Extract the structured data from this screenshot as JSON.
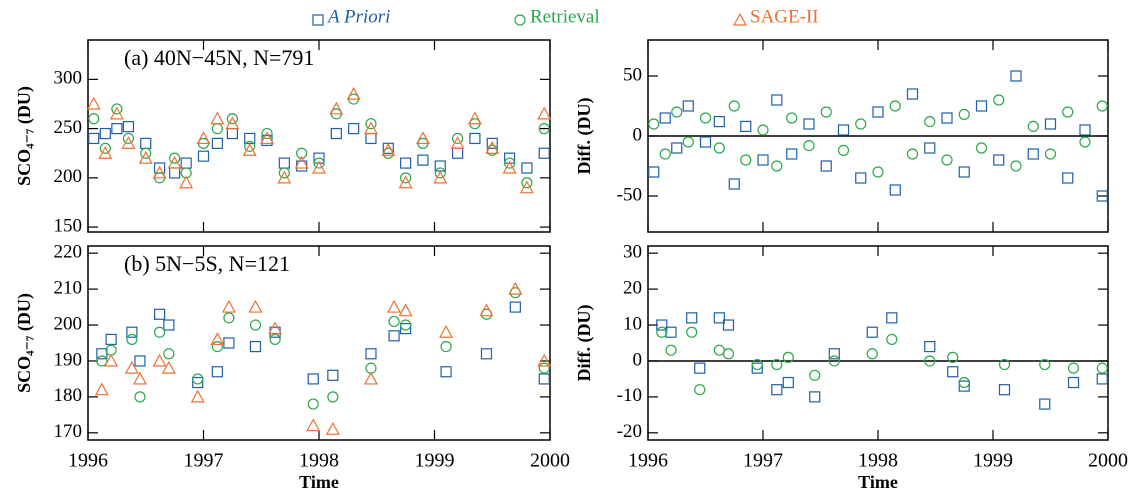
{
  "chart_data": [
    {
      "type": "scatter",
      "annotation": "(a) 40N−45N, N=791",
      "ylabel": "SCO₄₋₇ (DU)",
      "x": [
        1996.05,
        1996.15,
        1996.25,
        1996.35,
        1996.5,
        1996.62,
        1996.75,
        1996.85,
        1997.0,
        1997.12,
        1997.25,
        1997.4,
        1997.55,
        1997.7,
        1997.85,
        1998.0,
        1998.15,
        1998.3,
        1998.45,
        1998.6,
        1998.75,
        1998.9,
        1999.05,
        1999.2,
        1999.35,
        1999.5,
        1999.65,
        1999.8,
        1999.95
      ],
      "series": [
        {
          "name": "A Priori",
          "color": "#1f5fa8",
          "marker": "square",
          "values": [
            240,
            245,
            250,
            252,
            235,
            210,
            205,
            215,
            222,
            235,
            245,
            240,
            238,
            215,
            212,
            220,
            245,
            250,
            240,
            230,
            215,
            218,
            212,
            225,
            240,
            235,
            220,
            210,
            225
          ]
        },
        {
          "name": "Retrieval",
          "color": "#2aa84a",
          "marker": "circle",
          "values": [
            260,
            230,
            270,
            240,
            225,
            200,
            220,
            205,
            235,
            250,
            260,
            232,
            245,
            205,
            225,
            215,
            265,
            280,
            255,
            225,
            200,
            235,
            205,
            240,
            255,
            228,
            215,
            195,
            250
          ]
        },
        {
          "name": "SAGE-II",
          "color": "#f07030",
          "marker": "triangle",
          "values": [
            275,
            225,
            265,
            235,
            220,
            205,
            215,
            195,
            240,
            260,
            255,
            228,
            240,
            200,
            215,
            210,
            270,
            285,
            250,
            228,
            195,
            240,
            200,
            235,
            260,
            230,
            210,
            190,
            265
          ]
        }
      ],
      "xlim": [
        1996,
        2000
      ],
      "xticks": [
        1996,
        1997,
        1998,
        1999,
        2000
      ],
      "ylim": [
        145,
        340
      ],
      "yticks": [
        150,
        200,
        250,
        300
      ]
    },
    {
      "type": "scatter",
      "ylabel": "Diff. (DU)",
      "x": [
        1996.05,
        1996.15,
        1996.25,
        1996.35,
        1996.5,
        1996.62,
        1996.75,
        1996.85,
        1997.0,
        1997.12,
        1997.25,
        1997.4,
        1997.55,
        1997.7,
        1997.85,
        1998.0,
        1998.15,
        1998.3,
        1998.45,
        1998.6,
        1998.75,
        1998.9,
        1999.05,
        1999.2,
        1999.35,
        1999.5,
        1999.65,
        1999.8,
        1999.95
      ],
      "series": [
        {
          "color": "#1f5fa8",
          "marker": "square",
          "values": [
            -30,
            15,
            -10,
            25,
            -5,
            12,
            -40,
            8,
            -20,
            30,
            -15,
            10,
            -25,
            5,
            -35,
            20,
            -45,
            35,
            -10,
            15,
            -30,
            25,
            -20,
            50,
            -15,
            10,
            -35,
            5,
            -50
          ]
        },
        {
          "color": "#2aa84a",
          "marker": "circle",
          "values": [
            10,
            -15,
            20,
            -5,
            15,
            -10,
            25,
            -20,
            5,
            -25,
            15,
            -8,
            20,
            -12,
            10,
            -30,
            25,
            -15,
            12,
            -20,
            18,
            -10,
            30,
            -25,
            8,
            -15,
            20,
            -5,
            25
          ]
        }
      ],
      "hline": 0,
      "xlim": [
        1996,
        2000
      ],
      "xticks": [
        1996,
        1997,
        1998,
        1999,
        2000
      ],
      "ylim": [
        -80,
        80
      ],
      "yticks": [
        -50,
        0,
        50
      ]
    },
    {
      "type": "scatter",
      "annotation": "(b) 5N−5S, N=121",
      "ylabel": "SCO₄₋₇ (DU)",
      "xlabel": "Time",
      "x": [
        1996.12,
        1996.2,
        1996.38,
        1996.45,
        1996.62,
        1996.7,
        1996.95,
        1997.12,
        1997.22,
        1997.45,
        1997.62,
        1997.95,
        1998.12,
        1998.45,
        1998.65,
        1998.75,
        1999.1,
        1999.45,
        1999.7,
        1999.95
      ],
      "series": [
        {
          "color": "#1f5fa8",
          "marker": "square",
          "values": [
            192,
            196,
            198,
            190,
            203,
            200,
            184,
            187,
            195,
            194,
            198,
            185,
            186,
            192,
            197,
            199,
            187,
            192,
            205,
            185
          ]
        },
        {
          "color": "#2aa84a",
          "marker": "circle",
          "values": [
            190,
            193,
            196,
            180,
            198,
            192,
            185,
            194,
            202,
            200,
            196,
            178,
            180,
            188,
            201,
            200,
            194,
            203,
            209,
            188
          ]
        },
        {
          "color": "#f07030",
          "marker": "triangle",
          "values": [
            182,
            190,
            188,
            185,
            190,
            188,
            180,
            196,
            205,
            205,
            199,
            172,
            171,
            185,
            205,
            204,
            198,
            204,
            210,
            190
          ]
        }
      ],
      "xlim": [
        1996,
        2000
      ],
      "xticks": [
        1996,
        1997,
        1998,
        1999,
        2000
      ],
      "ylim": [
        168,
        222
      ],
      "yticks": [
        170,
        180,
        190,
        200,
        210,
        220
      ]
    },
    {
      "type": "scatter",
      "ylabel": "Diff. (DU)",
      "xlabel": "Time",
      "x": [
        1996.12,
        1996.2,
        1996.38,
        1996.45,
        1996.62,
        1996.7,
        1996.95,
        1997.12,
        1997.22,
        1997.45,
        1997.62,
        1997.95,
        1998.12,
        1998.45,
        1998.65,
        1998.75,
        1999.1,
        1999.45,
        1999.7,
        1999.95
      ],
      "series": [
        {
          "color": "#1f5fa8",
          "marker": "square",
          "values": [
            10,
            8,
            12,
            -2,
            12,
            10,
            -2,
            -8,
            -6,
            -10,
            2,
            8,
            12,
            4,
            -3,
            -7,
            -8,
            -12,
            -6,
            -5
          ]
        },
        {
          "color": "#2aa84a",
          "marker": "circle",
          "values": [
            8,
            3,
            8,
            -8,
            3,
            2,
            -1,
            -1,
            1,
            -4,
            0,
            2,
            6,
            0,
            1,
            -6,
            -1,
            -1,
            -2,
            -2
          ]
        }
      ],
      "hline": 0,
      "xlim": [
        1996,
        2000
      ],
      "xticks": [
        1996,
        1997,
        1998,
        1999,
        2000
      ],
      "ylim": [
        -22,
        32
      ],
      "yticks": [
        -20,
        -10,
        0,
        10,
        20,
        30
      ]
    }
  ]
}
